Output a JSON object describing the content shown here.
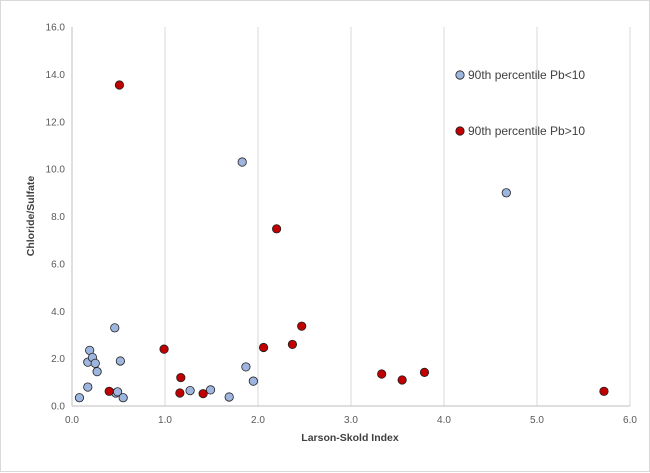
{
  "chart_data": {
    "type": "scatter",
    "title": "",
    "xlabel": "Larson-Skold Index",
    "ylabel": "Chloride/Sulfate",
    "xlim": [
      0,
      6
    ],
    "ylim": [
      0,
      16
    ],
    "x_ticks": [
      "0.0",
      "1.0",
      "2.0",
      "3.0",
      "4.0",
      "5.0",
      "6.0"
    ],
    "y_ticks": [
      "0.0",
      "2.0",
      "4.0",
      "6.0",
      "8.0",
      "10.0",
      "12.0",
      "14.0",
      "16.0"
    ],
    "grid": "vertical",
    "legend_position": "top-right",
    "series": [
      {
        "name": "90th percentile Pb<10",
        "color": "#9eb6df",
        "points": [
          [
            0.08,
            0.35
          ],
          [
            0.17,
            0.8
          ],
          [
            0.17,
            1.85
          ],
          [
            0.19,
            2.35
          ],
          [
            0.22,
            2.05
          ],
          [
            0.25,
            1.8
          ],
          [
            0.27,
            1.45
          ],
          [
            0.46,
            3.3
          ],
          [
            0.47,
            0.55
          ],
          [
            0.49,
            0.6
          ],
          [
            0.52,
            1.9
          ],
          [
            0.55,
            0.35
          ],
          [
            1.27,
            0.65
          ],
          [
            1.49,
            0.68
          ],
          [
            1.69,
            0.38
          ],
          [
            1.83,
            10.3
          ],
          [
            1.87,
            1.65
          ],
          [
            1.95,
            1.05
          ],
          [
            4.67,
            9.0
          ]
        ]
      },
      {
        "name": "90th percentile Pb>10",
        "color": "#c00000",
        "points": [
          [
            0.4,
            0.62
          ],
          [
            0.51,
            13.55
          ],
          [
            0.99,
            2.4
          ],
          [
            1.16,
            0.55
          ],
          [
            1.17,
            1.2
          ],
          [
            1.41,
            0.52
          ],
          [
            2.06,
            2.47
          ],
          [
            2.2,
            7.48
          ],
          [
            2.37,
            2.6
          ],
          [
            2.47,
            3.37
          ],
          [
            3.33,
            1.35
          ],
          [
            3.55,
            1.1
          ],
          [
            3.79,
            1.42
          ],
          [
            5.72,
            0.62
          ]
        ]
      }
    ]
  }
}
